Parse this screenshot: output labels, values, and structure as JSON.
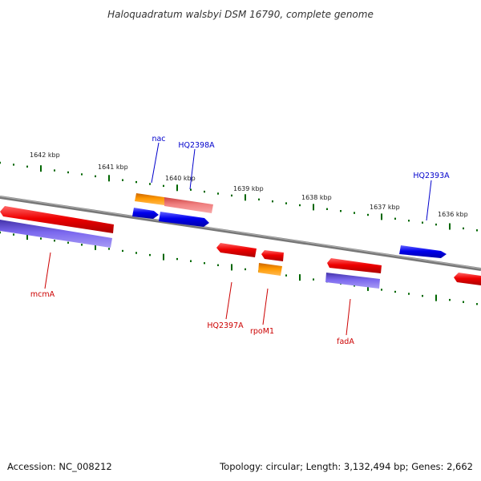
{
  "title": "Haloquadratum walsbyi DSM 16790, complete genome",
  "ruler": {
    "labels": [
      "1642 kbp",
      "1641 kbp",
      "1640 kbp",
      "1639 kbp",
      "1638 kbp",
      "1637 kbp",
      "1636 kbp"
    ]
  },
  "genes": [
    {
      "name": "nac",
      "color": "#0000cc"
    },
    {
      "name": "HQ2398A",
      "color": "#0000cc"
    },
    {
      "name": "HQ2393A",
      "color": "#0000cc"
    },
    {
      "name": "mcmA",
      "color": "#cc0000"
    },
    {
      "name": "HQ2397A",
      "color": "#cc0000"
    },
    {
      "name": "rpoM1",
      "color": "#cc0000"
    },
    {
      "name": "fadA",
      "color": "#cc0000"
    }
  ],
  "colors": {
    "forward": "#1a1aff",
    "reverse": "#ff1a1a",
    "rna_orange": "#ff9900",
    "pink": "#f08080",
    "purple": "#7b68ee",
    "tick": "#006600",
    "backbone": "#888888"
  },
  "footer": {
    "accession": "Accession: NC_008212",
    "summary": "Topology: circular; Length: 3,132,494 bp; Genes: 2,662"
  }
}
